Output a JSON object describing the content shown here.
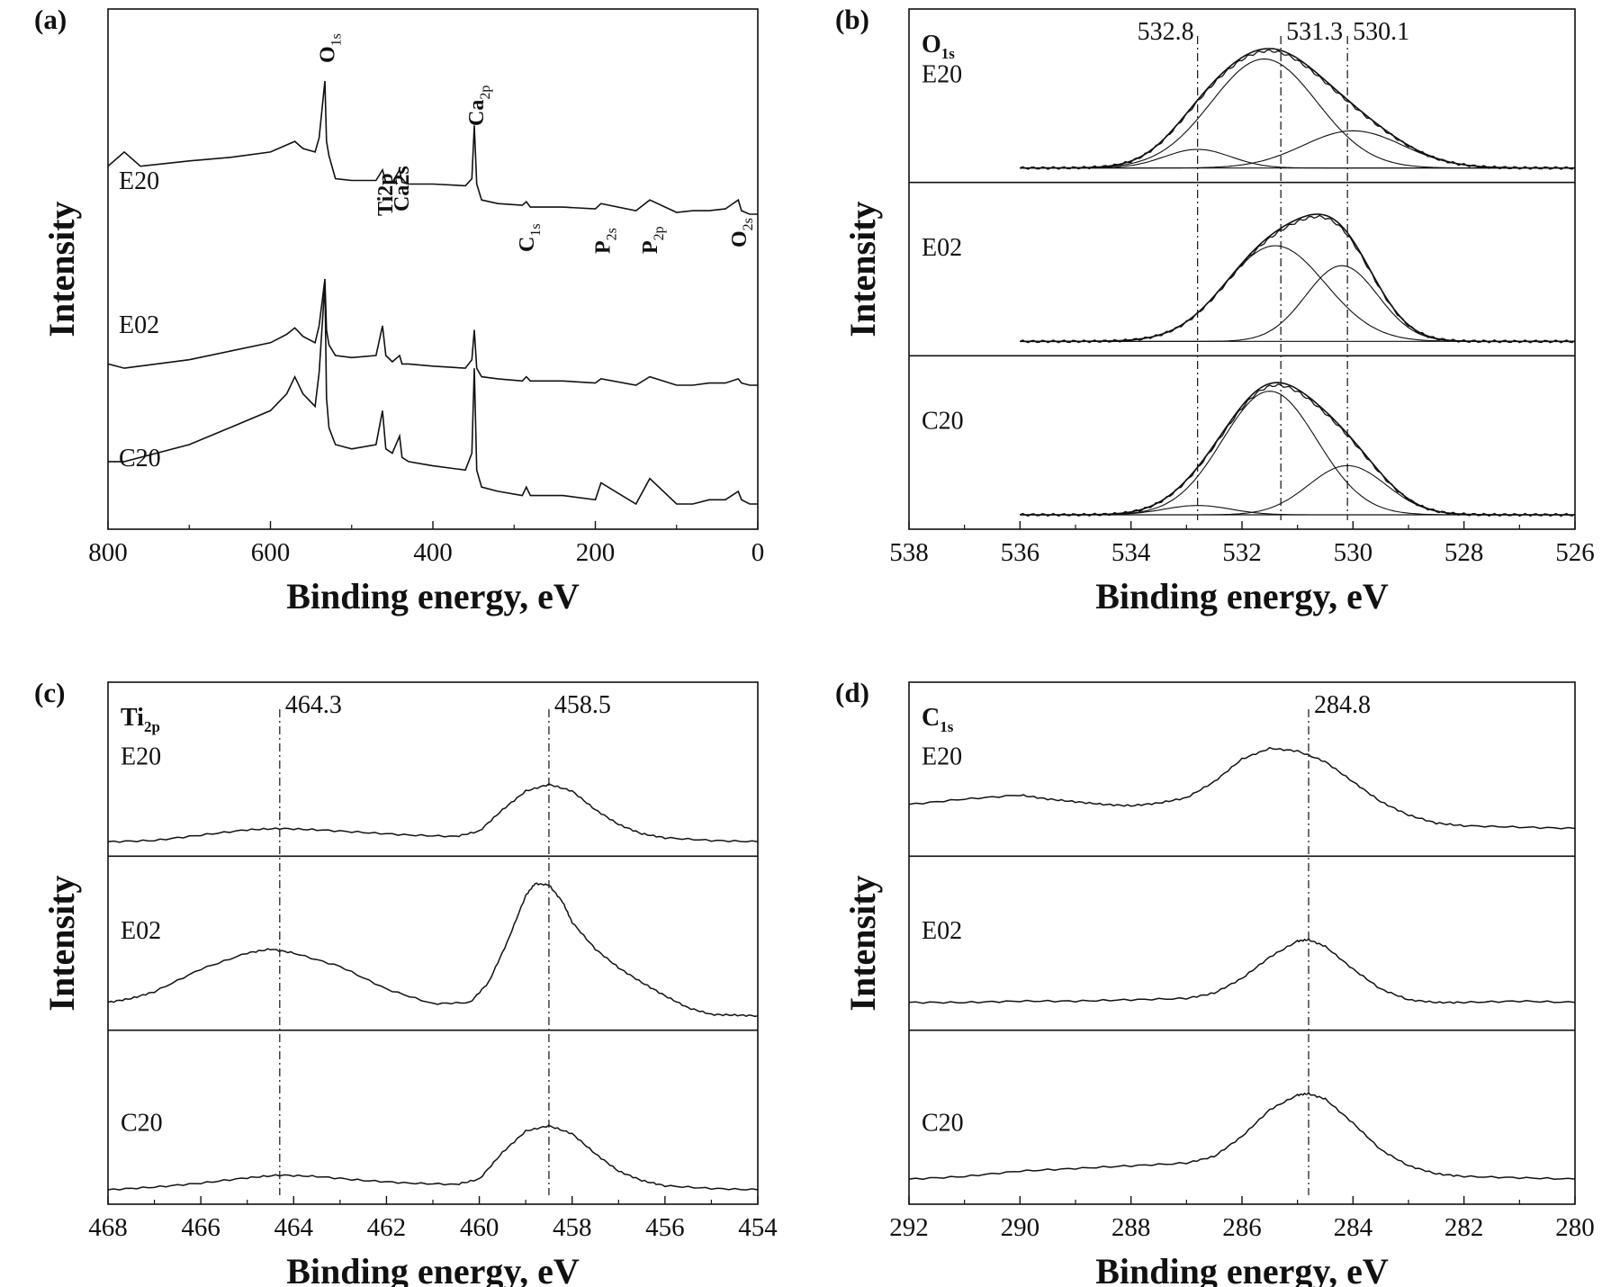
{
  "colors": {
    "line": "#111111",
    "background": "#ffffff"
  },
  "chart_data": [
    {
      "id": "a",
      "type": "line",
      "panel_label": "(a)",
      "xlabel": "Binding energy, eV",
      "ylabel": "Intensity",
      "xlim": [
        800,
        0
      ],
      "xticks": [
        800,
        600,
        400,
        200,
        0
      ],
      "yticks": false,
      "grid": false,
      "series": [
        {
          "name": "E20",
          "x": [
            800,
            780,
            760,
            700,
            650,
            600,
            580,
            570,
            560,
            545,
            540,
            533,
            531,
            528,
            520,
            500,
            470,
            462,
            458,
            450,
            441,
            438,
            430,
            400,
            360,
            352,
            349,
            346,
            340,
            320,
            290,
            285,
            280,
            240,
            200,
            193,
            150,
            133,
            100,
            80,
            60,
            40,
            24,
            20,
            10,
            0
          ],
          "y": [
            0.52,
            0.6,
            0.52,
            0.55,
            0.57,
            0.6,
            0.64,
            0.66,
            0.62,
            0.6,
            0.68,
            1.0,
            0.66,
            0.58,
            0.45,
            0.44,
            0.44,
            0.5,
            0.43,
            0.43,
            0.5,
            0.43,
            0.42,
            0.42,
            0.41,
            0.45,
            0.75,
            0.42,
            0.33,
            0.31,
            0.3,
            0.32,
            0.29,
            0.29,
            0.28,
            0.31,
            0.27,
            0.33,
            0.26,
            0.27,
            0.27,
            0.28,
            0.33,
            0.27,
            0.25,
            0.25
          ]
        },
        {
          "name": "E02",
          "x": [
            800,
            780,
            700,
            650,
            600,
            580,
            570,
            560,
            545,
            540,
            533,
            531,
            528,
            520,
            500,
            470,
            462,
            458,
            450,
            441,
            438,
            430,
            400,
            360,
            352,
            349,
            346,
            340,
            320,
            290,
            285,
            280,
            240,
            200,
            193,
            150,
            133,
            100,
            80,
            60,
            40,
            24,
            20,
            10,
            0
          ],
          "y": [
            0.6,
            0.58,
            0.62,
            0.66,
            0.7,
            0.74,
            0.77,
            0.73,
            0.7,
            0.78,
            1.0,
            0.76,
            0.69,
            0.64,
            0.63,
            0.64,
            0.78,
            0.64,
            0.61,
            0.64,
            0.6,
            0.6,
            0.59,
            0.58,
            0.62,
            0.76,
            0.58,
            0.54,
            0.53,
            0.52,
            0.54,
            0.52,
            0.52,
            0.51,
            0.53,
            0.5,
            0.54,
            0.5,
            0.5,
            0.51,
            0.51,
            0.53,
            0.51,
            0.5,
            0.5
          ]
        },
        {
          "name": "C20",
          "x": [
            800,
            780,
            700,
            650,
            600,
            580,
            570,
            560,
            545,
            540,
            533,
            531,
            528,
            520,
            500,
            470,
            462,
            458,
            450,
            441,
            438,
            430,
            400,
            360,
            352,
            349,
            346,
            340,
            320,
            290,
            285,
            280,
            240,
            200,
            193,
            150,
            133,
            100,
            80,
            60,
            40,
            24,
            20,
            10,
            0
          ],
          "y": [
            0.58,
            0.58,
            0.62,
            0.66,
            0.7,
            0.74,
            0.78,
            0.74,
            0.71,
            0.79,
            1.0,
            0.73,
            0.66,
            0.62,
            0.61,
            0.62,
            0.7,
            0.61,
            0.6,
            0.64,
            0.59,
            0.58,
            0.57,
            0.56,
            0.6,
            0.8,
            0.56,
            0.52,
            0.51,
            0.5,
            0.52,
            0.5,
            0.5,
            0.49,
            0.53,
            0.48,
            0.54,
            0.48,
            0.48,
            0.49,
            0.49,
            0.51,
            0.49,
            0.48,
            0.48
          ]
        }
      ],
      "annotations": [
        {
          "main": "O",
          "sub": "1s",
          "x": 530
        },
        {
          "main": "Ti2p",
          "sub": "",
          "x": 459
        },
        {
          "main": "Ca2s",
          "sub": "",
          "x": 439
        },
        {
          "main": "Ca",
          "sub": "2p",
          "x": 347
        },
        {
          "main": "C",
          "sub": "1s",
          "x": 285
        },
        {
          "main": "P",
          "sub": "2s",
          "x": 191
        },
        {
          "main": "P",
          "sub": "2p",
          "x": 133
        },
        {
          "main": "O",
          "sub": "2s",
          "x": 23
        }
      ]
    },
    {
      "id": "b",
      "type": "line",
      "panel_label": "(b)",
      "core_level": {
        "main": "O",
        "sub": "1s"
      },
      "xlabel": "Binding energy, eV",
      "ylabel": "Intensity",
      "xlim": [
        538,
        526
      ],
      "xticks": [
        538,
        536,
        534,
        532,
        530,
        528,
        526
      ],
      "grid": false,
      "reference_lines": [
        532.8,
        531.3,
        530.1
      ],
      "reference_labels": [
        "532.8",
        "531.3",
        "530.1"
      ],
      "stacked_traces": [
        {
          "name": "E20",
          "components": [
            {
              "center": 532.8,
              "height": 0.14,
              "width": 0.6
            },
            {
              "center": 531.6,
              "height": 0.82,
              "width": 0.95
            },
            {
              "center": 530.0,
              "height": 0.28,
              "width": 0.9
            }
          ]
        },
        {
          "name": "E02",
          "components": [
            {
              "center": 532.8,
              "height": 0.0,
              "width": 0.6
            },
            {
              "center": 531.4,
              "height": 0.72,
              "width": 0.9
            },
            {
              "center": 530.2,
              "height": 0.57,
              "width": 0.65
            }
          ]
        },
        {
          "name": "C20",
          "components": [
            {
              "center": 532.8,
              "height": 0.07,
              "width": 0.6
            },
            {
              "center": 531.5,
              "height": 0.93,
              "width": 0.85
            },
            {
              "center": 530.1,
              "height": 0.37,
              "width": 0.7
            }
          ]
        }
      ]
    },
    {
      "id": "c",
      "type": "line",
      "panel_label": "(c)",
      "core_level": {
        "main": "Ti",
        "sub": "2p"
      },
      "xlabel": "Binding energy, eV",
      "ylabel": "Intensity",
      "xlim": [
        468,
        454
      ],
      "xticks": [
        468,
        466,
        464,
        462,
        460,
        458,
        456,
        454
      ],
      "grid": false,
      "reference_lines": [
        464.3,
        458.5
      ],
      "reference_labels": [
        "464.3",
        "458.5"
      ],
      "stacked_traces": [
        {
          "name": "E20",
          "x": [
            468,
            467,
            466,
            465,
            464.3,
            463.5,
            462.5,
            461.5,
            460.5,
            460,
            459.5,
            459,
            458.5,
            458,
            457.5,
            457,
            456.5,
            456,
            455,
            454
          ],
          "y": [
            0,
            0.01,
            0.05,
            0.09,
            0.1,
            0.09,
            0.07,
            0.05,
            0.04,
            0.08,
            0.24,
            0.38,
            0.43,
            0.38,
            0.24,
            0.13,
            0.06,
            0.03,
            0.01,
            0
          ]
        },
        {
          "name": "E02",
          "x": [
            468,
            467.5,
            467,
            466,
            465,
            464.5,
            464,
            463,
            462,
            461,
            460.2,
            459.8,
            459.4,
            459,
            458.8,
            458.5,
            458.2,
            458,
            457.5,
            457,
            456.5,
            456,
            455.5,
            455,
            454.5,
            454
          ],
          "y": [
            0.1,
            0.13,
            0.18,
            0.35,
            0.47,
            0.5,
            0.47,
            0.37,
            0.2,
            0.09,
            0.1,
            0.25,
            0.55,
            0.9,
            0.99,
            0.98,
            0.85,
            0.7,
            0.5,
            0.36,
            0.25,
            0.15,
            0.06,
            0.01,
            0.005,
            0
          ]
        },
        {
          "name": "C20",
          "x": [
            468,
            467,
            466,
            465,
            464.3,
            463.5,
            462.5,
            461.5,
            460.5,
            460,
            459.5,
            459,
            458.5,
            458,
            457.5,
            457,
            456.5,
            456,
            455,
            454
          ],
          "y": [
            0,
            0.02,
            0.05,
            0.09,
            0.11,
            0.1,
            0.07,
            0.05,
            0.04,
            0.08,
            0.28,
            0.44,
            0.48,
            0.42,
            0.27,
            0.14,
            0.07,
            0.03,
            0.01,
            0
          ]
        }
      ]
    },
    {
      "id": "d",
      "type": "line",
      "panel_label": "(d)",
      "core_level": {
        "main": "C",
        "sub": "1s"
      },
      "xlabel": "Binding energy, eV",
      "ylabel": "Intensity",
      "xlim": [
        292,
        280
      ],
      "xticks": [
        292,
        290,
        288,
        286,
        284,
        282,
        280
      ],
      "grid": false,
      "reference_lines": [
        284.8
      ],
      "reference_labels": [
        "284.8"
      ],
      "stacked_traces": [
        {
          "name": "E20",
          "x": [
            292,
            291,
            290,
            289.5,
            289,
            288.5,
            288,
            287.5,
            287,
            286.5,
            286,
            285.5,
            285,
            284.5,
            284,
            283.5,
            283,
            282.5,
            282,
            281,
            280
          ],
          "y": [
            0.28,
            0.32,
            0.35,
            0.32,
            0.3,
            0.28,
            0.27,
            0.29,
            0.33,
            0.45,
            0.62,
            0.7,
            0.68,
            0.6,
            0.45,
            0.3,
            0.2,
            0.14,
            0.12,
            0.11,
            0.1
          ]
        },
        {
          "name": "E02",
          "x": [
            292,
            291,
            290,
            289,
            288,
            287,
            286.5,
            286,
            285.5,
            285,
            284.8,
            284.5,
            284,
            283.5,
            283,
            282.5,
            282,
            281,
            280
          ],
          "y": [
            0.1,
            0.1,
            0.11,
            0.11,
            0.12,
            0.13,
            0.17,
            0.28,
            0.44,
            0.56,
            0.57,
            0.52,
            0.35,
            0.2,
            0.12,
            0.1,
            0.1,
            0.11,
            0.1
          ]
        },
        {
          "name": "C20",
          "x": [
            292,
            291,
            290,
            289,
            288,
            287,
            286.5,
            286,
            285.5,
            285,
            284.8,
            284.5,
            284,
            283.5,
            283,
            282.5,
            282,
            281,
            280
          ],
          "y": [
            0.08,
            0.1,
            0.14,
            0.16,
            0.18,
            0.2,
            0.25,
            0.4,
            0.6,
            0.71,
            0.72,
            0.68,
            0.5,
            0.3,
            0.18,
            0.12,
            0.1,
            0.09,
            0.08
          ]
        }
      ]
    }
  ]
}
